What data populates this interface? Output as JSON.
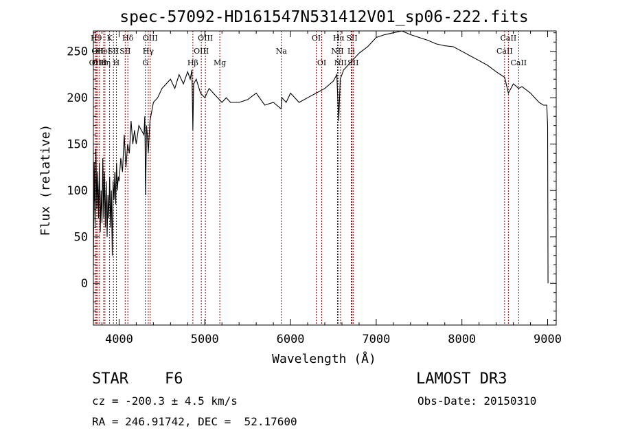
{
  "chart_data": {
    "type": "line",
    "title": "spec-57092-HD161547N531412V01_sp06-222.fits",
    "xlabel": "Wavelength (Å)",
    "ylabel": "Flux (relative)",
    "xlim": [
      3700,
      9100
    ],
    "ylim": [
      -45,
      272
    ],
    "xticks": [
      4000,
      5000,
      6000,
      7000,
      8000,
      9000
    ],
    "yticks": [
      0,
      50,
      100,
      150,
      200,
      250
    ],
    "grid": false,
    "line_color": "#000000",
    "marker_color": "#8b0000",
    "series": [
      {
        "x": [
          3700,
          3710,
          3720,
          3730,
          3740,
          3750,
          3760,
          3770,
          3780,
          3790,
          3800,
          3810,
          3820,
          3830,
          3840,
          3850,
          3860,
          3870,
          3880,
          3890,
          3900,
          3910,
          3920,
          3930,
          3940,
          3950,
          3960,
          3970,
          3980,
          3990,
          4000,
          4020,
          4040,
          4060,
          4080,
          4100,
          4120,
          4140,
          4160,
          4180,
          4200,
          4230,
          4260,
          4290,
          4300,
          4310,
          4320,
          4330,
          4340,
          4360,
          4380,
          4400,
          4450,
          4500,
          4550,
          4600,
          4650,
          4700,
          4750,
          4800,
          4830,
          4850,
          4861,
          4870,
          4900,
          4950,
          5000,
          5050,
          5100,
          5150,
          5200,
          5250,
          5300,
          5400,
          5500,
          5600,
          5700,
          5800,
          5890,
          5900,
          5950,
          6000,
          6100,
          6200,
          6300,
          6400,
          6500,
          6540,
          6563,
          6580,
          6620,
          6700,
          6800,
          6900,
          7000,
          7100,
          7200,
          7300,
          7400,
          7500,
          7600,
          7700,
          7800,
          7900,
          8000,
          8100,
          8200,
          8300,
          8400,
          8498,
          8542,
          8600,
          8662,
          8700,
          8800,
          8850,
          8900,
          8950,
          8990,
          9000,
          9005
        ],
        "y": [
          20,
          130,
          60,
          145,
          80,
          120,
          70,
          130,
          55,
          100,
          65,
          135,
          70,
          120,
          60,
          110,
          50,
          95,
          70,
          115,
          60,
          100,
          30,
          110,
          90,
          120,
          85,
          130,
          100,
          115,
          110,
          135,
          120,
          160,
          125,
          150,
          140,
          175,
          150,
          165,
          150,
          170,
          165,
          160,
          180,
          95,
          170,
          160,
          140,
          175,
          185,
          195,
          200,
          210,
          215,
          220,
          210,
          225,
          215,
          228,
          220,
          230,
          165,
          215,
          220,
          205,
          200,
          210,
          205,
          200,
          195,
          200,
          195,
          195,
          198,
          205,
          192,
          195,
          188,
          200,
          195,
          205,
          195,
          200,
          205,
          210,
          218,
          225,
          175,
          220,
          230,
          238,
          248,
          255,
          265,
          268,
          270,
          272,
          268,
          265,
          262,
          258,
          256,
          255,
          250,
          245,
          240,
          235,
          228,
          222,
          205,
          215,
          210,
          212,
          205,
          200,
          195,
          192,
          192,
          170,
          0
        ]
      }
    ],
    "line_markers": [
      {
        "x": 3720,
        "row": 2,
        "label": "OII"
      },
      {
        "x": 3734,
        "row": 0,
        "label": "H9"
      },
      {
        "x": 3750,
        "row": 1,
        "label": "OII"
      },
      {
        "x": 3771,
        "row": 2,
        "label": "OIII"
      },
      {
        "x": 3820,
        "row": 1,
        "label": "HeI"
      },
      {
        "x": 3835,
        "row": 2,
        "label": "Hη"
      },
      {
        "x": 3889,
        "row": 0,
        "label": "K"
      },
      {
        "x": 3934,
        "row": 1,
        "label": "SII"
      },
      {
        "x": 3968,
        "row": 2,
        "label": "H"
      },
      {
        "x": 4102,
        "row": 0,
        "label": "Hδ"
      },
      {
        "x": 4071,
        "row": 1,
        "label": "SII"
      },
      {
        "x": 4306,
        "row": 2,
        "label": "G"
      },
      {
        "x": 4340,
        "row": 1,
        "label": "Hγ"
      },
      {
        "x": 4363,
        "row": 0,
        "label": "OIII"
      },
      {
        "x": 4861,
        "row": 2,
        "label": "Hβ"
      },
      {
        "x": 4959,
        "row": 1,
        "label": "OIII"
      },
      {
        "x": 5007,
        "row": 0,
        "label": "OIII"
      },
      {
        "x": 5175,
        "row": 2,
        "label": "Mg"
      },
      {
        "x": 5893,
        "row": 1,
        "label": "Na"
      },
      {
        "x": 6300,
        "row": 0,
        "label": "OI"
      },
      {
        "x": 6364,
        "row": 2,
        "label": "OI"
      },
      {
        "x": 6548,
        "row": 1,
        "label": "NII"
      },
      {
        "x": 6563,
        "row": 0,
        "label": "Hα"
      },
      {
        "x": 6584,
        "row": 2,
        "label": "NII"
      },
      {
        "x": 6708,
        "row": 1,
        "label": "Li"
      },
      {
        "x": 6717,
        "row": 0,
        "label": "SII"
      },
      {
        "x": 6731,
        "row": 2,
        "label": "SII"
      },
      {
        "x": 8498,
        "row": 1,
        "label": "CaII"
      },
      {
        "x": 8542,
        "row": 0,
        "label": "CaII"
      },
      {
        "x": 8662,
        "row": 2,
        "label": "CaII"
      }
    ]
  },
  "info": {
    "object_class": "STAR",
    "subclass": "F6",
    "survey": "LAMOST DR3",
    "redshift": "cz = -200.3 ± 4.5 km/s",
    "obs_date": "Obs-Date: 20150310",
    "coords": "RA = 246.91742, DEC =  52.17600"
  }
}
